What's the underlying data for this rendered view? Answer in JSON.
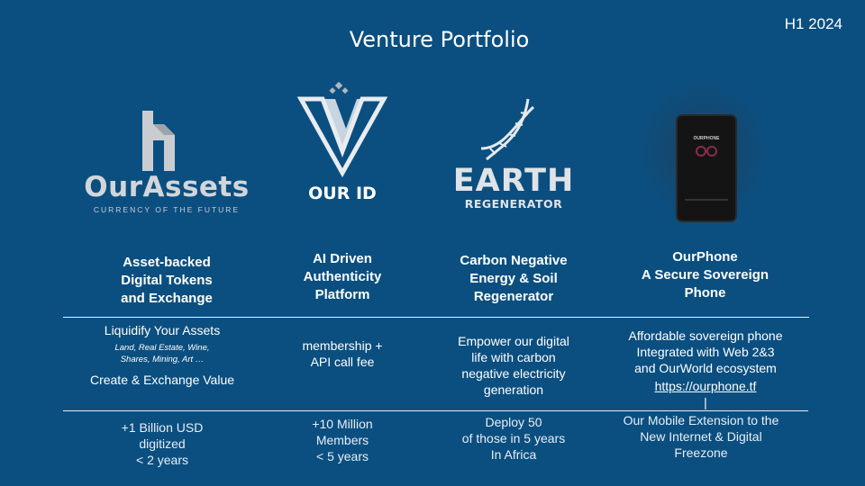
{
  "period": "H1 2024",
  "title": "Venture Portfolio",
  "ventures": [
    {
      "logo_name": "OurAssets",
      "logo_tagline": "CURRENCY OF THE FUTURE",
      "heading": [
        "Asset-backed",
        "Digital Tokens",
        "and Exchange"
      ],
      "desc_lines": [
        "Liquidify Your Assets"
      ],
      "small_lines": [
        "Land, Real Estate, Wine,",
        "Shares, Mining, Art …"
      ],
      "desc_extra": "Create & Exchange Value",
      "stat": [
        "+1 Billion USD",
        "digitized",
        "< 2 years"
      ]
    },
    {
      "logo_name": "OUR ID",
      "heading": [
        "AI Driven",
        "Authenticity",
        "Platform"
      ],
      "desc_lines": [
        "membership +",
        "API call fee"
      ],
      "stat": [
        "+10 Million",
        "Members",
        "< 5 years"
      ]
    },
    {
      "logo_name": "EARTH",
      "logo_tagline": "REGENERATOR",
      "heading": [
        "Carbon Negative",
        "Energy & Soil",
        "Regenerator"
      ],
      "desc_lines": [
        "Empower our digital",
        "life with carbon",
        "negative electricity",
        "generation"
      ],
      "stat": [
        "Deploy 50",
        "of those in 5 years",
        "In Africa"
      ]
    },
    {
      "logo_name": "OURPHONE",
      "heading": [
        "OurPhone",
        "A Secure Sovereign",
        "Phone"
      ],
      "desc_lines": [
        "Affordable sovereign phone",
        "Integrated with Web 2&3",
        "and OurWorld ecosystem"
      ],
      "link": "https://ourphone.tf",
      "link_suffix": "|",
      "stat": [
        "Our Mobile Extension to the",
        "New Internet & Digital",
        "Freezone"
      ]
    }
  ]
}
